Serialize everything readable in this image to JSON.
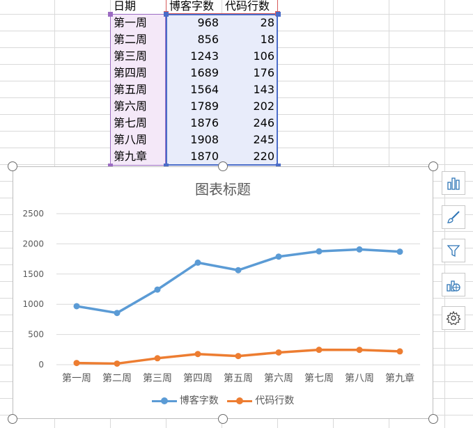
{
  "sheet": {
    "headers": [
      "日期",
      "博客字数",
      "代码行数"
    ],
    "rows": [
      [
        "第一周",
        "968",
        "28"
      ],
      [
        "第二周",
        "856",
        "18"
      ],
      [
        "第三周",
        "1243",
        "106"
      ],
      [
        "第四周",
        "1689",
        "176"
      ],
      [
        "第五周",
        "1564",
        "143"
      ],
      [
        "第六周",
        "1789",
        "202"
      ],
      [
        "第七周",
        "1876",
        "246"
      ],
      [
        "第八周",
        "1908",
        "245"
      ],
      [
        "第九章",
        "1870",
        "220"
      ]
    ]
  },
  "chart_data": {
    "type": "line",
    "title": "图表标题",
    "categories": [
      "第一周",
      "第二周",
      "第三周",
      "第四周",
      "第五周",
      "第六周",
      "第七周",
      "第八周",
      "第九章"
    ],
    "series": [
      {
        "name": "博客字数",
        "color": "#5b9bd5",
        "values": [
          968,
          856,
          1243,
          1689,
          1564,
          1789,
          1876,
          1908,
          1870
        ]
      },
      {
        "name": "代码行数",
        "color": "#ed7d31",
        "values": [
          28,
          18,
          106,
          176,
          143,
          202,
          246,
          245,
          220
        ]
      }
    ],
    "y_ticks": [
      "0",
      "500",
      "1000",
      "1500",
      "2000",
      "2500"
    ],
    "ylim": [
      0,
      2500
    ],
    "grid": true,
    "legend_position": "bottom"
  },
  "tools": [
    {
      "name": "chart-elements-icon"
    },
    {
      "name": "chart-styles-brush-icon"
    },
    {
      "name": "chart-filter-icon"
    },
    {
      "name": "chart-map-icon"
    },
    {
      "name": "gear-icon"
    }
  ]
}
